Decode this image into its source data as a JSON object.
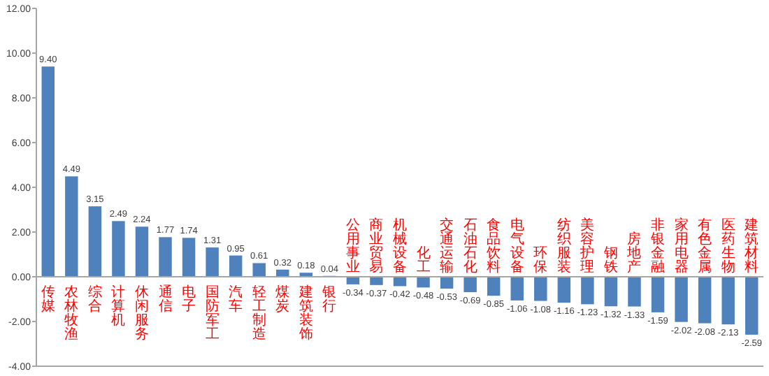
{
  "chart_data": {
    "type": "bar",
    "categories": [
      "传媒",
      "农林牧渔",
      "综合",
      "计算机",
      "休闲服务",
      "通信",
      "电子",
      "国防军工",
      "汽车",
      "轻工制造",
      "煤炭",
      "建筑装饰",
      "银行",
      "公用事业",
      "商业贸易",
      "机械设备",
      "化工",
      "交通运输",
      "石油石化",
      "食品饮料",
      "电气设备",
      "环保",
      "纺织服装",
      "美容护理",
      "钢铁",
      "房地产",
      "非银金融",
      "家用电器",
      "有色金属",
      "医药生物",
      "建筑材料"
    ],
    "values": [
      9.4,
      4.49,
      3.15,
      2.49,
      2.24,
      1.77,
      1.74,
      1.31,
      0.95,
      0.61,
      0.32,
      0.18,
      0.04,
      -0.34,
      -0.37,
      -0.42,
      -0.48,
      -0.53,
      -0.69,
      -0.85,
      -1.06,
      -1.08,
      -1.16,
      -1.23,
      -1.32,
      -1.33,
      -1.59,
      -2.02,
      -2.08,
      -2.13,
      -2.59
    ],
    "value_labels": [
      "9.40",
      "4.49",
      "3.15",
      "2.49",
      "2.24",
      "1.77",
      "1.74",
      "1.31",
      "0.95",
      "0.61",
      "0.32",
      "0.18",
      "0.04",
      "-0.34",
      "-0.37",
      "-0.42",
      "-0.48",
      "-0.53",
      "-0.69",
      "-0.85",
      "-1.06",
      "-1.08",
      "-1.16",
      "-1.23",
      "-1.32",
      "-1.33",
      "-1.59",
      "-2.02",
      "-2.08",
      "-2.13",
      "-2.59"
    ],
    "color": "#4f81bd",
    "ylim": [
      -4,
      12
    ],
    "yticks": [
      {
        "value": -4,
        "label": "-4.00"
      },
      {
        "value": -2,
        "label": "-2.00"
      },
      {
        "value": 0,
        "label": "0.00"
      },
      {
        "value": 2,
        "label": "2.00"
      },
      {
        "value": 4,
        "label": "4.00"
      },
      {
        "value": 6,
        "label": "6.00"
      },
      {
        "value": 8,
        "label": "8.00"
      },
      {
        "value": 10,
        "label": "10.00"
      },
      {
        "value": 12,
        "label": "12.00"
      }
    ]
  }
}
